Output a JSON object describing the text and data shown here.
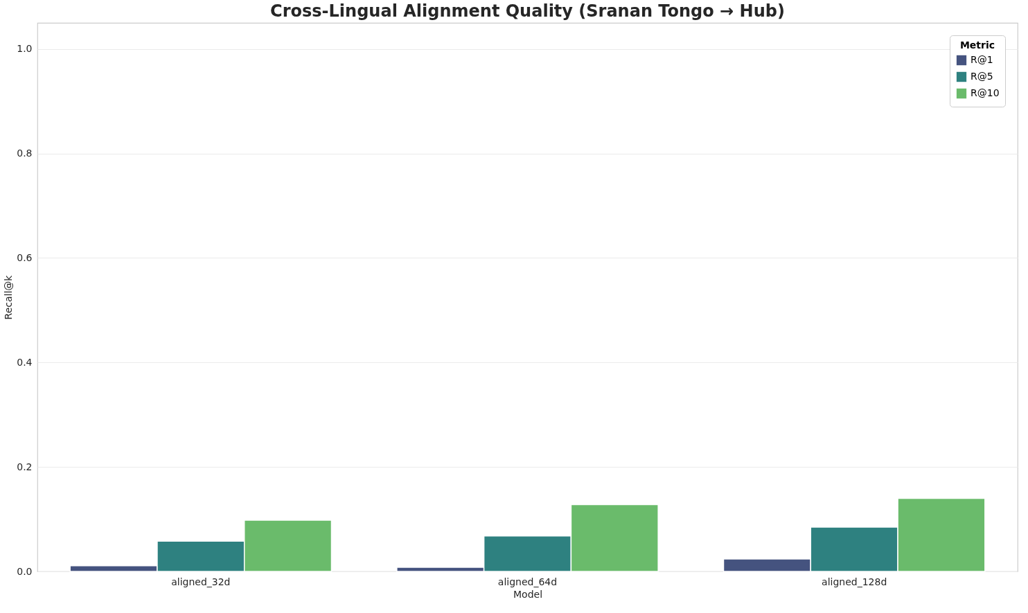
{
  "chart_data": {
    "type": "bar",
    "title": "Cross-Lingual Alignment Quality (Sranan Tongo → Hub)",
    "xlabel": "Model",
    "ylabel": "Recall@k",
    "legend_title": "Metric",
    "categories": [
      "aligned_32d",
      "aligned_64d",
      "aligned_128d"
    ],
    "series": [
      {
        "name": "R@1",
        "color": "#45537f",
        "values": [
          0.011,
          0.008,
          0.024
        ]
      },
      {
        "name": "R@5",
        "color": "#2e8180",
        "values": [
          0.058,
          0.068,
          0.085
        ]
      },
      {
        "name": "R@10",
        "color": "#6abb6b",
        "values": [
          0.098,
          0.128,
          0.14
        ]
      }
    ],
    "ylim": [
      0,
      1.05
    ],
    "yticks": [
      {
        "value": 0,
        "label": "0.0"
      },
      0.2,
      0.4,
      0.6,
      0.8,
      {
        "value": 1,
        "label": "1.0"
      }
    ],
    "grid": "y",
    "legend": "top right"
  }
}
